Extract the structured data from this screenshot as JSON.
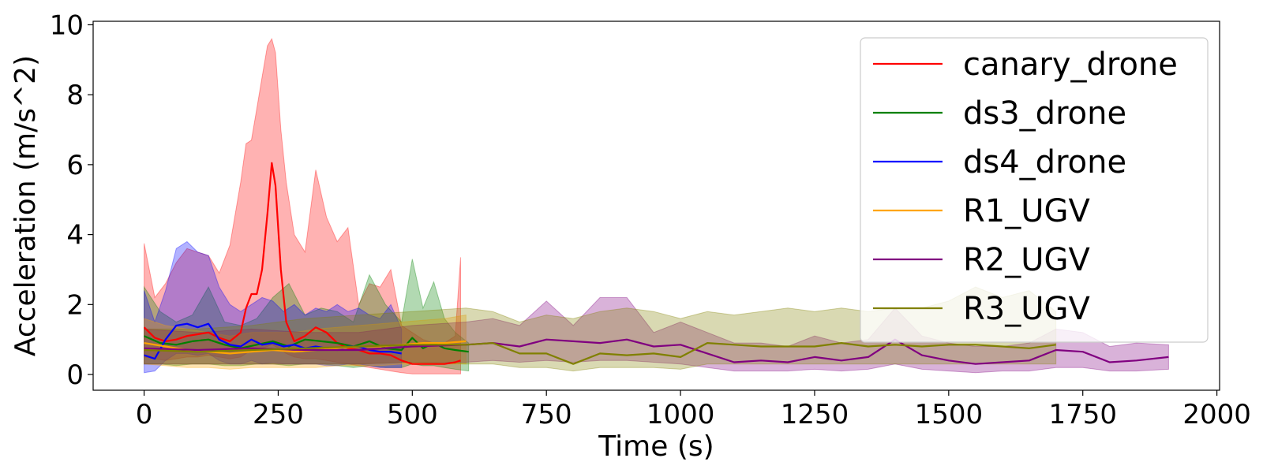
{
  "chart_data": {
    "type": "line",
    "title": "",
    "xlabel": "Time (s)",
    "ylabel": "Acceleration (m/s^2)",
    "xlim": [
      -95,
      2005
    ],
    "ylim": [
      -0.45,
      10.1
    ],
    "xticks": [
      0,
      250,
      500,
      750,
      1000,
      1250,
      1500,
      1750,
      2000
    ],
    "yticks": [
      0,
      2,
      4,
      6,
      8,
      10
    ],
    "grid": false,
    "legend_position": "top-right",
    "series": [
      {
        "name": "canary_drone",
        "color": "#ff0000",
        "x": [
          0,
          20,
          40,
          60,
          80,
          100,
          120,
          140,
          160,
          180,
          190,
          200,
          210,
          220,
          230,
          238,
          245,
          255,
          265,
          280,
          300,
          320,
          340,
          360,
          380,
          400,
          420,
          440,
          460,
          480,
          500,
          520,
          540,
          560,
          580,
          590
        ],
        "mean": [
          1.35,
          1.05,
          0.95,
          1.0,
          1.1,
          1.15,
          1.2,
          1.05,
          0.95,
          1.2,
          1.9,
          2.3,
          2.3,
          3.0,
          4.6,
          6.05,
          5.4,
          3.0,
          1.5,
          0.95,
          1.1,
          1.35,
          1.2,
          0.9,
          0.75,
          0.7,
          0.6,
          0.6,
          0.55,
          0.4,
          0.3,
          0.3,
          0.3,
          0.3,
          0.35,
          0.4
        ],
        "lower": [
          0.5,
          0.45,
          0.4,
          0.45,
          0.5,
          0.5,
          0.55,
          0.5,
          0.45,
          0.5,
          0.6,
          0.7,
          0.7,
          0.75,
          0.8,
          0.85,
          0.8,
          0.7,
          0.6,
          0.5,
          0.45,
          0.45,
          0.4,
          0.35,
          0.3,
          0.25,
          0.2,
          0.15,
          0.1,
          0.05,
          0.02,
          0.02,
          0.02,
          0.02,
          0.02,
          0.02
        ],
        "upper": [
          3.75,
          2.2,
          2.6,
          3.2,
          3.6,
          3.5,
          3.4,
          2.9,
          3.7,
          5.5,
          6.6,
          6.7,
          7.6,
          8.5,
          9.4,
          9.6,
          9.2,
          7.0,
          5.5,
          4.0,
          3.5,
          5.85,
          4.5,
          3.8,
          4.2,
          2.0,
          2.6,
          2.5,
          3.0,
          1.4,
          1.2,
          1.0,
          0.9,
          0.9,
          1.1,
          3.35
        ]
      },
      {
        "name": "ds3_drone",
        "color": "#008000",
        "x": [
          0,
          30,
          60,
          90,
          120,
          150,
          180,
          210,
          240,
          270,
          300,
          330,
          360,
          390,
          420,
          450,
          480,
          500,
          520,
          540,
          560,
          580,
          605
        ],
        "mean": [
          1.1,
          0.9,
          0.85,
          0.95,
          1.0,
          0.85,
          0.75,
          0.85,
          0.95,
          0.8,
          1.0,
          0.95,
          0.9,
          0.8,
          0.95,
          0.75,
          0.7,
          1.05,
          0.75,
          0.9,
          0.75,
          0.7,
          0.65
        ],
        "lower": [
          0.3,
          0.3,
          0.25,
          0.3,
          0.3,
          0.25,
          0.25,
          0.3,
          0.3,
          0.25,
          0.3,
          0.3,
          0.25,
          0.2,
          0.25,
          0.2,
          0.2,
          0.3,
          0.25,
          0.25,
          0.2,
          0.15,
          0.1
        ],
        "upper": [
          2.5,
          1.8,
          1.5,
          1.7,
          2.5,
          1.5,
          1.4,
          1.6,
          2.2,
          2.6,
          1.7,
          1.9,
          1.8,
          1.5,
          2.85,
          2.0,
          1.5,
          3.3,
          1.9,
          2.65,
          1.6,
          1.2,
          0.9
        ]
      },
      {
        "name": "ds4_drone",
        "color": "#0000ff",
        "x": [
          0,
          20,
          40,
          60,
          80,
          100,
          120,
          140,
          160,
          180,
          200,
          220,
          240,
          260,
          280,
          300,
          320,
          340,
          360,
          380,
          400,
          420,
          440,
          460,
          480
        ],
        "mean": [
          0.55,
          0.45,
          1.0,
          1.4,
          1.45,
          1.35,
          1.45,
          1.0,
          0.85,
          0.8,
          1.0,
          0.85,
          0.9,
          0.8,
          0.85,
          0.75,
          0.8,
          0.75,
          0.7,
          0.8,
          0.8,
          0.7,
          0.65,
          0.65,
          0.6
        ],
        "lower": [
          0.05,
          0.1,
          0.4,
          0.6,
          0.6,
          0.55,
          0.6,
          0.4,
          0.3,
          0.3,
          0.4,
          0.3,
          0.35,
          0.3,
          0.3,
          0.3,
          0.3,
          0.25,
          0.25,
          0.3,
          0.3,
          0.25,
          0.2,
          0.2,
          0.2
        ],
        "upper": [
          2.4,
          1.5,
          2.4,
          3.6,
          3.8,
          3.5,
          3.4,
          2.5,
          2.0,
          1.8,
          2.0,
          2.2,
          2.1,
          1.8,
          2.0,
          1.7,
          1.9,
          1.8,
          2.0,
          1.8,
          1.9,
          1.7,
          1.6,
          2.0,
          1.3
        ]
      },
      {
        "name": "R1_UGV",
        "color": "#ffa500",
        "x": [
          0,
          40,
          80,
          120,
          160,
          200,
          240,
          280,
          320,
          360,
          400,
          440,
          480,
          520,
          560,
          600
        ],
        "mean": [
          0.9,
          0.8,
          0.7,
          0.65,
          0.6,
          0.65,
          0.7,
          0.65,
          0.7,
          0.75,
          0.8,
          0.8,
          0.85,
          0.9,
          0.9,
          0.95
        ],
        "lower": [
          0.3,
          0.25,
          0.2,
          0.2,
          0.15,
          0.2,
          0.2,
          0.2,
          0.2,
          0.25,
          0.25,
          0.25,
          0.3,
          0.3,
          0.3,
          0.3
        ],
        "upper": [
          1.6,
          1.4,
          1.3,
          1.2,
          1.1,
          1.2,
          1.2,
          1.2,
          1.3,
          1.35,
          1.4,
          1.45,
          1.5,
          1.55,
          1.6,
          1.7
        ]
      },
      {
        "name": "R2_UGV",
        "color": "#800080",
        "x": [
          0,
          100,
          200,
          300,
          400,
          500,
          600,
          650,
          700,
          750,
          800,
          850,
          900,
          950,
          1000,
          1050,
          1100,
          1150,
          1200,
          1250,
          1300,
          1350,
          1400,
          1450,
          1500,
          1550,
          1600,
          1650,
          1700,
          1750,
          1800,
          1850,
          1910
        ],
        "mean": [
          0.75,
          0.7,
          0.75,
          0.7,
          0.7,
          0.8,
          0.85,
          0.9,
          0.8,
          1.0,
          0.95,
          0.9,
          1.0,
          0.8,
          0.85,
          0.6,
          0.35,
          0.4,
          0.35,
          0.5,
          0.4,
          0.5,
          1.0,
          0.55,
          0.4,
          0.3,
          0.35,
          0.4,
          0.7,
          0.65,
          0.35,
          0.4,
          0.5
        ],
        "lower": [
          0.3,
          0.3,
          0.3,
          0.3,
          0.3,
          0.35,
          0.35,
          0.4,
          0.35,
          0.4,
          0.35,
          0.4,
          0.4,
          0.35,
          0.3,
          0.2,
          0.1,
          0.1,
          0.1,
          0.15,
          0.1,
          0.15,
          0.3,
          0.15,
          0.1,
          0.05,
          0.1,
          0.1,
          0.2,
          0.2,
          0.1,
          0.1,
          0.15
        ],
        "upper": [
          1.3,
          1.2,
          1.3,
          1.2,
          1.2,
          1.4,
          1.5,
          1.6,
          1.4,
          2.1,
          1.4,
          2.2,
          2.2,
          1.2,
          1.5,
          1.2,
          0.9,
          0.9,
          0.8,
          1.1,
          0.9,
          1.0,
          1.9,
          1.1,
          0.9,
          0.8,
          0.8,
          0.9,
          1.3,
          1.2,
          0.8,
          0.9,
          0.85
        ]
      },
      {
        "name": "R3_UGV",
        "color": "#808000",
        "x": [
          0,
          100,
          200,
          300,
          400,
          500,
          600,
          650,
          700,
          750,
          800,
          850,
          900,
          950,
          1000,
          1050,
          1100,
          1150,
          1200,
          1250,
          1300,
          1350,
          1400,
          1450,
          1500,
          1550,
          1600,
          1650,
          1700
        ],
        "mean": [
          0.7,
          0.65,
          0.7,
          0.75,
          0.8,
          0.85,
          0.85,
          0.9,
          0.6,
          0.6,
          0.3,
          0.6,
          0.55,
          0.6,
          0.5,
          0.9,
          0.85,
          0.8,
          0.8,
          0.8,
          0.9,
          0.8,
          0.85,
          0.8,
          0.85,
          0.85,
          0.8,
          0.75,
          0.85
        ],
        "lower": [
          0.3,
          0.3,
          0.3,
          0.3,
          0.3,
          0.35,
          0.3,
          0.3,
          0.2,
          0.2,
          0.1,
          0.2,
          0.2,
          0.2,
          0.15,
          0.3,
          0.3,
          0.3,
          0.3,
          0.3,
          0.3,
          0.3,
          0.3,
          0.3,
          0.3,
          0.3,
          0.3,
          0.3,
          0.3
        ],
        "upper": [
          1.3,
          1.3,
          1.4,
          1.6,
          1.7,
          1.8,
          1.9,
          1.8,
          1.5,
          1.7,
          1.6,
          1.8,
          1.9,
          1.8,
          1.6,
          1.8,
          1.7,
          1.8,
          1.9,
          1.8,
          1.9,
          1.8,
          1.9,
          1.9,
          2.1,
          2.5,
          2.2,
          2.4,
          1.8
        ]
      }
    ]
  }
}
